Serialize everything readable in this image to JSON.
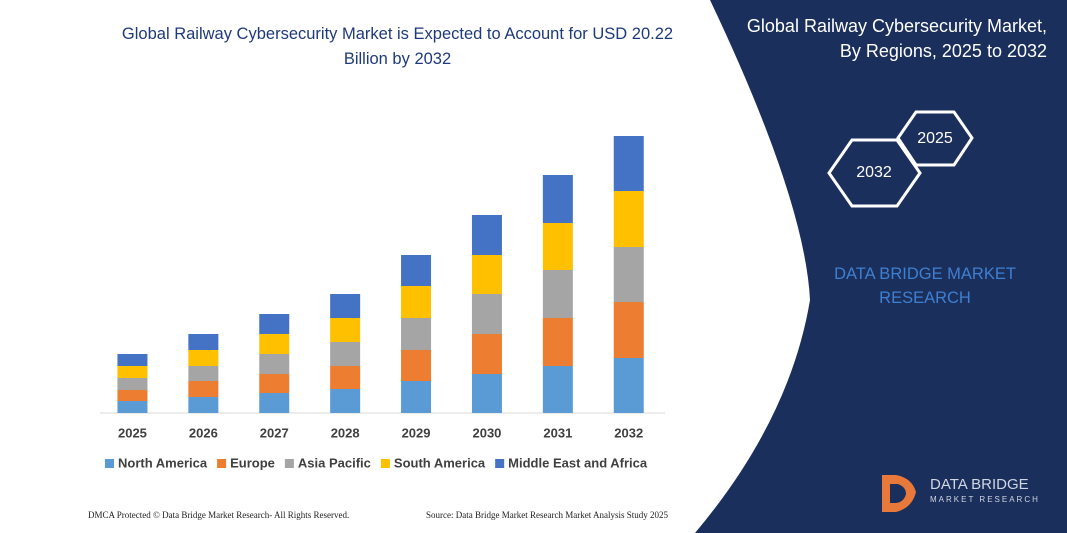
{
  "chart_data": {
    "type": "bar",
    "stacked": true,
    "title": "Global Railway Cybersecurity Market is Expected to Account for USD 20.22 Billion by 2032",
    "categories": [
      "2025",
      "2026",
      "2027",
      "2028",
      "2029",
      "2030",
      "2031",
      "2032"
    ],
    "series": [
      {
        "name": "North America",
        "color": "#5b9bd5",
        "values": [
          12,
          16,
          20,
          24,
          32,
          39,
          47,
          55
        ]
      },
      {
        "name": "Europe",
        "color": "#ed7d31",
        "values": [
          11,
          16,
          19,
          23,
          31,
          40,
          48,
          56
        ]
      },
      {
        "name": "Asia Pacific",
        "color": "#a5a5a5",
        "values": [
          12,
          15,
          20,
          24,
          32,
          40,
          48,
          55
        ]
      },
      {
        "name": "South America",
        "color": "#ffc000",
        "values": [
          12,
          16,
          20,
          24,
          32,
          39,
          47,
          56
        ]
      },
      {
        "name": "Middle East and Africa",
        "color": "#4472c4",
        "values": [
          12,
          16,
          20,
          24,
          31,
          40,
          48,
          55
        ]
      }
    ]
  },
  "side_panel": {
    "title": "Global Railway Cybersecurity Market, By Regions, 2025 to 2032",
    "hexagons": [
      "2025",
      "2032"
    ],
    "brand": "DATA BRIDGE MARKET RESEARCH"
  },
  "logo": {
    "name": "DATA BRIDGE",
    "tagline": "MARKET RESEARCH"
  },
  "footer": {
    "left": "DMCA Protected © Data Bridge Market Research- All Rights Reserved.",
    "right": "Source: Data Bridge Market Research Market Analysis Study 2025"
  }
}
